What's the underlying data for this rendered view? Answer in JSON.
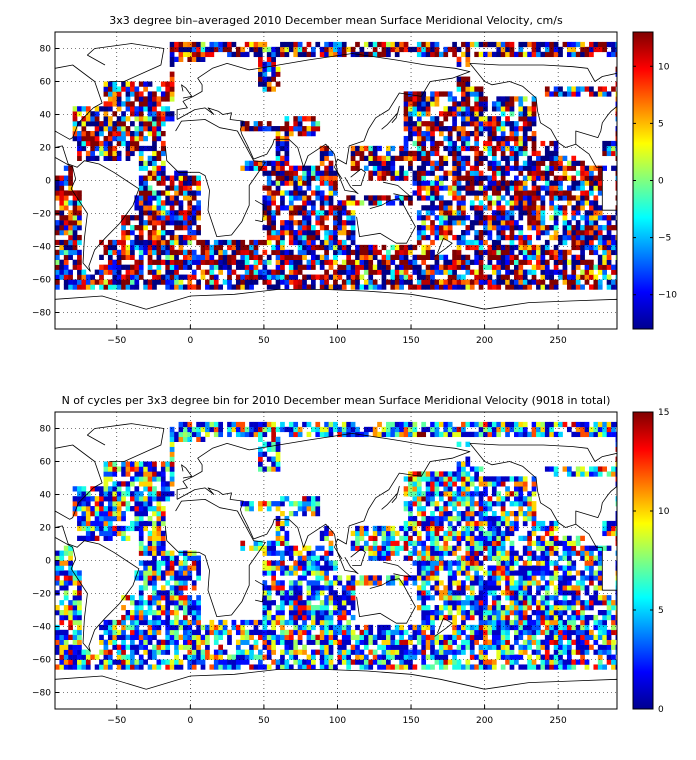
{
  "chart_data": [
    {
      "type": "heatmap",
      "title": "3x3 degree bin–averaged 2010 December mean Surface Meridional Velocity, cm/s",
      "xlabel": "",
      "ylabel": "",
      "xlim": [
        -92,
        290
      ],
      "ylim": [
        -90,
        90
      ],
      "x_ticks": [
        -50,
        0,
        50,
        100,
        150,
        200,
        250
      ],
      "y_ticks": [
        80,
        60,
        40,
        20,
        0,
        -20,
        -40,
        -60,
        -80
      ],
      "grid": true,
      "bin_size_deg": 3,
      "colorbar": {
        "colormap": "jet",
        "range": [
          -13,
          13
        ],
        "ticks": [
          10,
          5,
          0,
          -5,
          -10
        ]
      },
      "seed": 11
    },
    {
      "type": "heatmap",
      "title": "N of cycles per 3x3 degree bin for 2010 December mean Surface Meridional Velocity (9018 in total)",
      "xlabel": "",
      "ylabel": "",
      "xlim": [
        -92,
        290
      ],
      "ylim": [
        -90,
        90
      ],
      "x_ticks": [
        -50,
        0,
        50,
        100,
        150,
        200,
        250
      ],
      "y_ticks": [
        80,
        60,
        40,
        20,
        0,
        -20,
        -40,
        -60,
        -80
      ],
      "grid": true,
      "bin_size_deg": 3,
      "total_cycles": 9018,
      "colorbar": {
        "colormap": "jet",
        "range": [
          0,
          15
        ],
        "ticks": [
          15,
          10,
          5,
          0
        ]
      },
      "seed": 29
    }
  ]
}
